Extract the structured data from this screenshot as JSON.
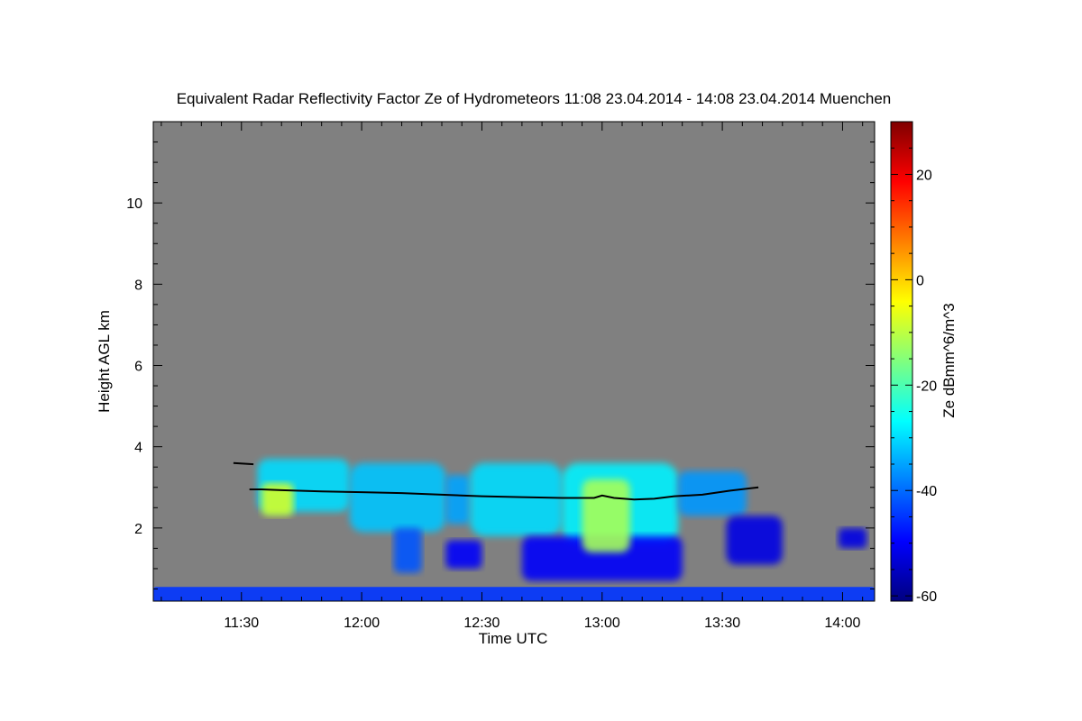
{
  "chart_data": {
    "type": "heatmap",
    "title": "Equivalent Radar Reflectivity Factor Ze of Hydrometeors   11:08 23.04.2014 - 14:08 23.04.2014 Muenchen",
    "xlabel": "Time UTC",
    "ylabel": "Height AGL km",
    "colorbar_label": "Ze dBmm^6/m^3",
    "x_ticks": [
      "11:30",
      "12:00",
      "12:30",
      "13:00",
      "13:30",
      "14:00"
    ],
    "x_tick_minutes": [
      690,
      720,
      750,
      780,
      810,
      840
    ],
    "xlim_minutes": [
      668,
      848
    ],
    "y_ticks": [
      "2",
      "4",
      "6",
      "8",
      "10"
    ],
    "y_tick_values": [
      2,
      4,
      6,
      8,
      10
    ],
    "ylim": [
      0.2,
      12.0
    ],
    "colorbar_ticks": [
      "20",
      "0",
      "-20",
      "-40",
      "-60"
    ],
    "colorbar_tick_values": [
      20,
      0,
      -20,
      -40,
      -60
    ],
    "colorbar_range": [
      -61,
      30
    ],
    "colors": {
      "background": "#808080",
      "cloud_base_line": "#000000",
      "colormap": [
        "#00007f",
        "#0000ff",
        "#007fff",
        "#00ffff",
        "#7fff7f",
        "#ffff00",
        "#ff7f00",
        "#ff0000",
        "#7f0000"
      ]
    },
    "cloud_base_line": {
      "x_minutes": [
        692,
        695,
        700,
        710,
        720,
        730,
        740,
        750,
        760,
        770,
        778,
        780,
        783,
        788,
        793,
        798,
        805,
        812,
        819
      ],
      "y_km": [
        2.95,
        2.95,
        2.93,
        2.9,
        2.88,
        2.86,
        2.82,
        2.78,
        2.76,
        2.74,
        2.74,
        2.8,
        2.74,
        2.7,
        2.72,
        2.78,
        2.82,
        2.92,
        3.0
      ]
    },
    "cloud_top_segment": {
      "x_minutes": [
        688,
        693
      ],
      "y_km": [
        3.6,
        3.57
      ]
    },
    "echo_cells": [
      {
        "x0": 694,
        "x1": 717,
        "y0": 2.4,
        "y1": 3.7,
        "ze": -30
      },
      {
        "x0": 717,
        "x1": 741,
        "y0": 1.9,
        "y1": 3.6,
        "ze": -32
      },
      {
        "x0": 728,
        "x1": 735,
        "y0": 0.9,
        "y1": 2.0,
        "ze": -42
      },
      {
        "x0": 741,
        "x1": 747,
        "y0": 2.1,
        "y1": 3.3,
        "ze": -35
      },
      {
        "x0": 747,
        "x1": 770,
        "y0": 1.8,
        "y1": 3.6,
        "ze": -30
      },
      {
        "x0": 770,
        "x1": 799,
        "y0": 1.6,
        "y1": 3.6,
        "ze": -28
      },
      {
        "x0": 799,
        "x1": 816,
        "y0": 2.3,
        "y1": 3.4,
        "ze": -36
      },
      {
        "x0": 760,
        "x1": 800,
        "y0": 0.7,
        "y1": 1.8,
        "ze": -50
      },
      {
        "x0": 741,
        "x1": 750,
        "y0": 1.0,
        "y1": 1.7,
        "ze": -50
      },
      {
        "x0": 811,
        "x1": 825,
        "y0": 1.1,
        "y1": 2.3,
        "ze": -52
      },
      {
        "x0": 839,
        "x1": 846,
        "y0": 1.5,
        "y1": 2.0,
        "ze": -52
      },
      {
        "x0": 695,
        "x1": 703,
        "y0": 2.3,
        "y1": 3.1,
        "ze": -8
      },
      {
        "x0": 775,
        "x1": 787,
        "y0": 1.4,
        "y1": 3.2,
        "ze": -12
      },
      {
        "x0": 668,
        "x1": 848,
        "y0": 0.2,
        "y1": 0.55,
        "ze": -45
      }
    ]
  }
}
